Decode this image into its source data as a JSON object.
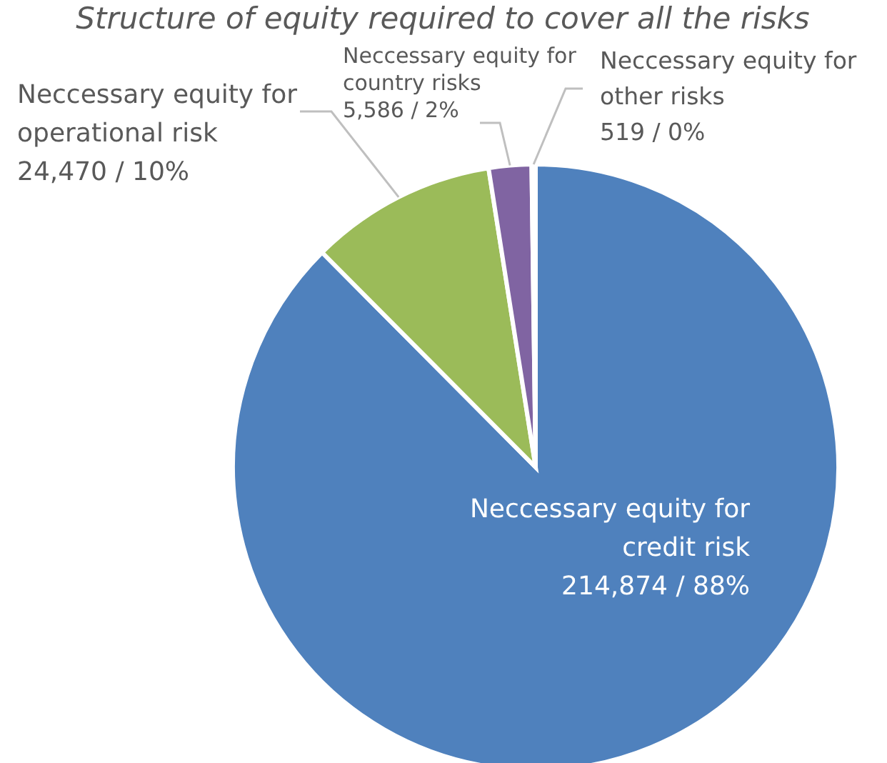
{
  "chart_data": {
    "type": "pie",
    "title": "Structure of equity required to cover all the risks",
    "categories": [
      "Neccessary equity for credit risk",
      "Neccessary equity for operational risk",
      "Neccessary equity for country risks",
      "Neccessary equity for other risks"
    ],
    "values": [
      214874,
      24470,
      5586,
      519
    ],
    "value_labels": [
      "214,874 / 88%",
      "24,470 / 10%",
      "5,586 / 2%",
      "519 / 0%"
    ],
    "colors": [
      "#4f81bd",
      "#9bbb59",
      "#8064a2",
      "#4bacc6"
    ],
    "legend": false
  }
}
